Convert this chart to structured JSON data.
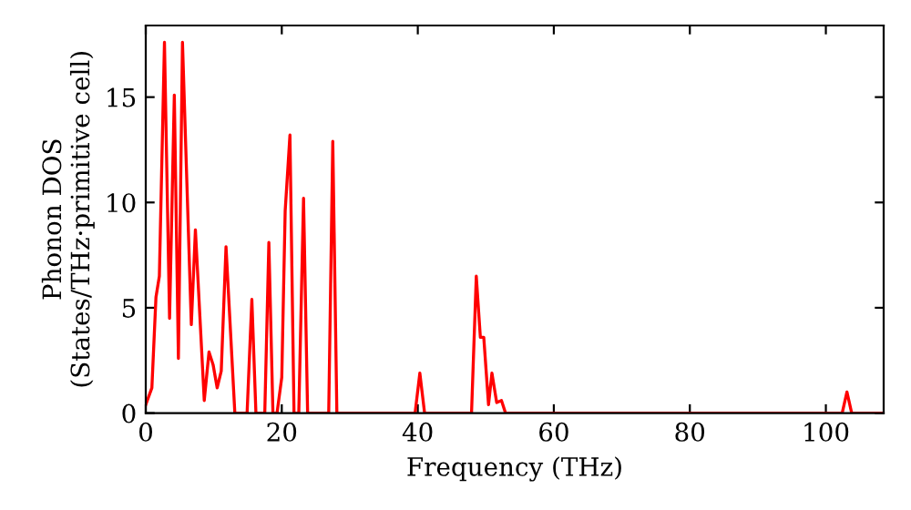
{
  "chart_data": {
    "type": "line",
    "xlabel": "Frequency (THz)",
    "ylabel": "Phonon DOS\n(States/THz·primitive cell)",
    "x": [
      0,
      0.9,
      1.5,
      2.0,
      2.75,
      3.5,
      4.2,
      4.8,
      5.4,
      6.7,
      7.3,
      8.6,
      9.3,
      9.9,
      10.5,
      11.1,
      11.8,
      13.1,
      14.9,
      15.6,
      16.2,
      17.5,
      18.1,
      18.7,
      19.3,
      20.0,
      20.5,
      21.2,
      21.8,
      22.5,
      23.2,
      23.8,
      26.9,
      27.5,
      28.1,
      39.6,
      40.3,
      41.0,
      47.9,
      48.6,
      49.2,
      49.7,
      50.4,
      50.9,
      51.6,
      52.3,
      52.9,
      102.4,
      103.1,
      103.8,
      108.5
    ],
    "series": [
      {
        "color": "#ff0000",
        "values": [
          0.4,
          1.2,
          5.5,
          6.5,
          17.6,
          4.5,
          15.1,
          2.6,
          17.6,
          4.2,
          8.7,
          0.6,
          2.9,
          2.3,
          1.2,
          2.0,
          7.9,
          0,
          0,
          5.4,
          0,
          0,
          8.1,
          0,
          0,
          1.7,
          9.6,
          13.2,
          0,
          0,
          10.2,
          0,
          0,
          12.9,
          0,
          0,
          1.9,
          0,
          0,
          6.5,
          3.6,
          3.6,
          0.4,
          1.9,
          0.5,
          0.6,
          0,
          0,
          1.0,
          0,
          0
        ]
      }
    ],
    "xlim": [
      0,
      108.5
    ],
    "ylim": [
      0,
      18.4
    ],
    "xticks": [
      0,
      20,
      40,
      60,
      80,
      100
    ],
    "yticks": [
      0,
      5,
      10,
      15
    ],
    "grid": false,
    "legend": false,
    "marker": "none",
    "line_style": "solid"
  }
}
